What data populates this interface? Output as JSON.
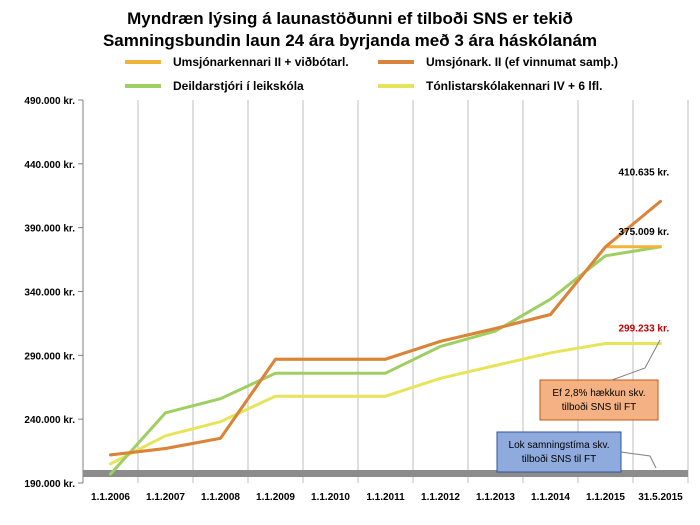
{
  "chart_data": {
    "type": "line",
    "title": "Myndræn lýsing á launastöðunni ef tilboði SNS er tekið",
    "subtitle": "Samningsbundin laun 24 ára byrjanda með 3 ára háskólanám",
    "categories": [
      "1.1.2006",
      "1.1.2007",
      "1.1.2008",
      "1.1.2009",
      "1.1.2010",
      "1.1.2011",
      "1.1.2012",
      "1.1.2013",
      "1.1.2014",
      "1.1.2015",
      "31.5.2015"
    ],
    "ylim": [
      190000,
      490000
    ],
    "yticks": [
      190000,
      240000,
      290000,
      340000,
      390000,
      440000,
      490000
    ],
    "ytick_labels": [
      "190.000 kr.",
      "240.000 kr.",
      "290.000 kr.",
      "340.000 kr.",
      "390.000 kr.",
      "440.000 kr.",
      "490.000 kr."
    ],
    "grid": "vertical",
    "legend_position": "top",
    "series": [
      {
        "name": "Umsjónarkennari II + viðbótarl.",
        "color": "#f0b43a",
        "values": [
          212000,
          217000,
          225000,
          287000,
          287000,
          287000,
          301000,
          311000,
          322000,
          375009,
          375009
        ]
      },
      {
        "name": "Umsjónark. II (ef vinnumat samþ.)",
        "color": "#d9843a",
        "values": [
          212000,
          217000,
          225000,
          287000,
          287000,
          287000,
          301000,
          311000,
          322000,
          375000,
          410635
        ]
      },
      {
        "name": "Deildarstjóri í leikskóla",
        "color": "#9fcf62",
        "values": [
          197000,
          245000,
          256000,
          276000,
          276000,
          276000,
          297000,
          309000,
          334000,
          368000,
          375009
        ]
      },
      {
        "name": "Tónlistarskólakennari IV + 6 lfl.",
        "color": "#e8e45a",
        "values": [
          205000,
          227000,
          238000,
          258000,
          258000,
          258000,
          272000,
          282000,
          292000,
          299233,
          299233
        ]
      }
    ],
    "value_labels": [
      {
        "text": "410.635 kr.",
        "x": "31.5.2015",
        "y": 410635,
        "color": "#000000"
      },
      {
        "text": "375.009 kr.",
        "x": "31.5.2015",
        "y": 375009,
        "color": "#000000"
      },
      {
        "text": "299.233 kr.",
        "x": "31.5.2015",
        "y": 299233,
        "color": "#c00000"
      }
    ],
    "annotations": [
      {
        "text_lines": [
          "Ef 2,8% hækkun skv.",
          "tilboði SNS til FT"
        ],
        "fill": "#f4b183",
        "border": "#c55a11"
      },
      {
        "text_lines": [
          "Lok samningstíma skv.",
          "tilboði SNS til FT"
        ],
        "fill": "#8faadc",
        "border": "#2f5597"
      }
    ]
  }
}
